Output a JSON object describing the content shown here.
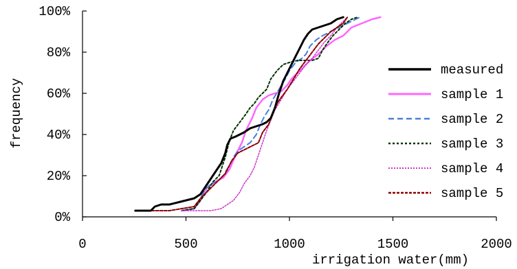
{
  "chart_data": {
    "type": "line",
    "title": "",
    "xlabel": "irrigation water(mm)",
    "ylabel": "frequency",
    "xlim": [
      0,
      2000
    ],
    "ylim": [
      0,
      100
    ],
    "x_ticks": [
      0,
      500,
      1000,
      1500,
      2000
    ],
    "y_ticks": [
      "0%",
      "20%",
      "40%",
      "60%",
      "80%",
      "100%"
    ],
    "y_tick_values": [
      0,
      20,
      40,
      60,
      80,
      100
    ],
    "grid": false,
    "legend_position": "right",
    "series": [
      {
        "name": "measured",
        "color": "#000000",
        "dash": "solid",
        "width": 3,
        "points": [
          [
            255,
            3
          ],
          [
            330,
            3
          ],
          [
            350,
            5
          ],
          [
            380,
            6
          ],
          [
            420,
            6
          ],
          [
            460,
            7
          ],
          [
            500,
            8
          ],
          [
            540,
            9
          ],
          [
            570,
            11
          ],
          [
            590,
            14
          ],
          [
            610,
            17
          ],
          [
            630,
            20
          ],
          [
            650,
            23
          ],
          [
            670,
            26
          ],
          [
            690,
            31
          ],
          [
            700,
            35
          ],
          [
            715,
            38
          ],
          [
            740,
            39
          ],
          [
            780,
            41
          ],
          [
            810,
            43
          ],
          [
            840,
            44
          ],
          [
            870,
            45
          ],
          [
            890,
            46
          ],
          [
            910,
            48
          ],
          [
            930,
            53
          ],
          [
            950,
            60
          ],
          [
            970,
            66
          ],
          [
            990,
            70
          ],
          [
            1010,
            74
          ],
          [
            1030,
            78
          ],
          [
            1050,
            82
          ],
          [
            1070,
            86
          ],
          [
            1090,
            89
          ],
          [
            1110,
            91
          ],
          [
            1140,
            92
          ],
          [
            1170,
            93
          ],
          [
            1200,
            94
          ],
          [
            1230,
            96
          ],
          [
            1260,
            97
          ]
        ]
      },
      {
        "name": "sample 1",
        "color": "#ff66ff",
        "dash": "solid",
        "width": 2.5,
        "points": [
          [
            480,
            3
          ],
          [
            540,
            4
          ],
          [
            570,
            8
          ],
          [
            600,
            14
          ],
          [
            640,
            17
          ],
          [
            680,
            19
          ],
          [
            710,
            23
          ],
          [
            740,
            30
          ],
          [
            770,
            36
          ],
          [
            790,
            42
          ],
          [
            820,
            48
          ],
          [
            840,
            53
          ],
          [
            870,
            57
          ],
          [
            900,
            59
          ],
          [
            930,
            60
          ],
          [
            960,
            61
          ],
          [
            990,
            64
          ],
          [
            1010,
            67
          ],
          [
            1040,
            70
          ],
          [
            1070,
            73
          ],
          [
            1100,
            76
          ],
          [
            1140,
            79
          ],
          [
            1180,
            83
          ],
          [
            1220,
            86
          ],
          [
            1260,
            88
          ],
          [
            1300,
            92
          ],
          [
            1350,
            94
          ],
          [
            1400,
            96
          ],
          [
            1440,
            97
          ]
        ]
      },
      {
        "name": "sample 2",
        "color": "#4a7ddd",
        "dash": "8,5",
        "width": 2,
        "points": [
          [
            480,
            3
          ],
          [
            540,
            4
          ],
          [
            560,
            7
          ],
          [
            590,
            13
          ],
          [
            620,
            16
          ],
          [
            650,
            17
          ],
          [
            680,
            20
          ],
          [
            710,
            25
          ],
          [
            730,
            29
          ],
          [
            750,
            32
          ],
          [
            780,
            34
          ],
          [
            810,
            36
          ],
          [
            840,
            40
          ],
          [
            860,
            45
          ],
          [
            880,
            49
          ],
          [
            900,
            52
          ],
          [
            920,
            57
          ],
          [
            950,
            62
          ],
          [
            980,
            67
          ],
          [
            1000,
            71
          ],
          [
            1030,
            75
          ],
          [
            1060,
            77
          ],
          [
            1080,
            79
          ],
          [
            1100,
            83
          ],
          [
            1130,
            86
          ],
          [
            1160,
            88
          ],
          [
            1200,
            90
          ],
          [
            1240,
            92
          ],
          [
            1280,
            94
          ],
          [
            1320,
            96
          ],
          [
            1340,
            97
          ]
        ]
      },
      {
        "name": "sample 3",
        "color": "#003300",
        "dash": "3,3",
        "width": 2,
        "points": [
          [
            480,
            3
          ],
          [
            540,
            4
          ],
          [
            570,
            8
          ],
          [
            600,
            12
          ],
          [
            630,
            17
          ],
          [
            660,
            20
          ],
          [
            690,
            29
          ],
          [
            710,
            37
          ],
          [
            730,
            42
          ],
          [
            760,
            46
          ],
          [
            790,
            50
          ],
          [
            810,
            53
          ],
          [
            830,
            55
          ],
          [
            850,
            58
          ],
          [
            870,
            60
          ],
          [
            890,
            62
          ],
          [
            910,
            67
          ],
          [
            940,
            71
          ],
          [
            970,
            74
          ],
          [
            1000,
            75
          ],
          [
            1040,
            76
          ],
          [
            1080,
            76
          ],
          [
            1110,
            76
          ],
          [
            1140,
            77
          ],
          [
            1160,
            81
          ],
          [
            1180,
            84
          ],
          [
            1210,
            88
          ],
          [
            1240,
            91
          ],
          [
            1270,
            94
          ],
          [
            1300,
            96
          ],
          [
            1330,
            97
          ]
        ]
      },
      {
        "name": "sample 4",
        "color": "#cc33cc",
        "dash": "2,2",
        "width": 1.5,
        "points": [
          [
            480,
            3
          ],
          [
            560,
            3
          ],
          [
            620,
            3
          ],
          [
            670,
            4
          ],
          [
            700,
            6
          ],
          [
            730,
            8
          ],
          [
            760,
            12
          ],
          [
            780,
            16
          ],
          [
            810,
            20
          ],
          [
            830,
            24
          ],
          [
            850,
            30
          ],
          [
            870,
            36
          ],
          [
            890,
            42
          ],
          [
            910,
            47
          ],
          [
            930,
            52
          ],
          [
            960,
            57
          ],
          [
            990,
            62
          ],
          [
            1020,
            66
          ],
          [
            1050,
            70
          ],
          [
            1080,
            74
          ],
          [
            1110,
            77
          ],
          [
            1140,
            81
          ],
          [
            1170,
            85
          ],
          [
            1200,
            88
          ],
          [
            1230,
            92
          ],
          [
            1260,
            95
          ],
          [
            1280,
            97
          ]
        ]
      },
      {
        "name": "sample 5",
        "color": "#8b0000",
        "dash": "4,2",
        "width": 2,
        "points": [
          [
            255,
            3
          ],
          [
            350,
            3
          ],
          [
            420,
            3
          ],
          [
            480,
            4
          ],
          [
            540,
            5
          ],
          [
            570,
            9
          ],
          [
            600,
            12
          ],
          [
            630,
            15
          ],
          [
            660,
            18
          ],
          [
            690,
            21
          ],
          [
            720,
            27
          ],
          [
            750,
            31
          ],
          [
            790,
            33
          ],
          [
            830,
            35
          ],
          [
            850,
            36
          ],
          [
            870,
            41
          ],
          [
            900,
            45
          ],
          [
            920,
            50
          ],
          [
            940,
            55
          ],
          [
            960,
            58
          ],
          [
            990,
            62
          ],
          [
            1020,
            67
          ],
          [
            1050,
            72
          ],
          [
            1080,
            76
          ],
          [
            1110,
            80
          ],
          [
            1140,
            84
          ],
          [
            1170,
            87
          ],
          [
            1200,
            90
          ],
          [
            1230,
            92
          ],
          [
            1260,
            94
          ],
          [
            1280,
            97
          ]
        ]
      }
    ]
  }
}
